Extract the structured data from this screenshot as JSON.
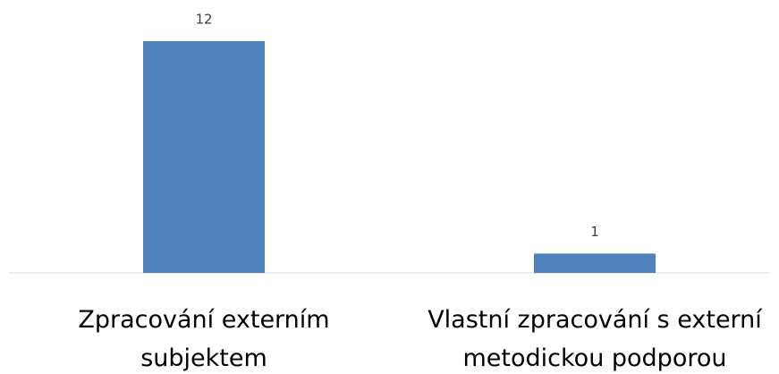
{
  "chart_data": {
    "type": "bar",
    "categories": [
      "Zpracování externím subjektem",
      "Vlastní zpracování s externí metodickou podporou"
    ],
    "values": [
      12,
      1
    ],
    "color": "#4f81bd",
    "ylim": [
      0,
      12
    ],
    "grid": false
  }
}
